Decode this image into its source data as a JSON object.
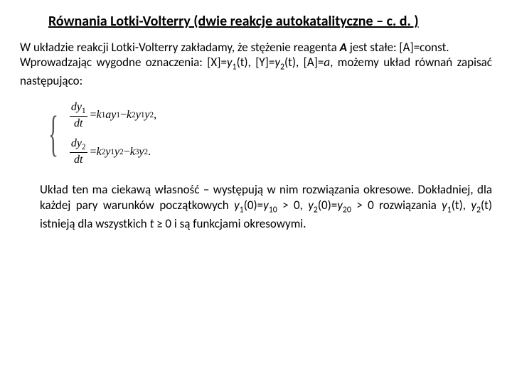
{
  "title": "Równania Lotki-Volterry (dwie reakcje autokatalityczne – c. d. )",
  "intro_p1_a": "W układzie reakcji Lotki-Volterry zakładamy, że stężenie reagenta ",
  "intro_p1_b": " jest stałe: [A]=const.",
  "reagent": "A",
  "intro_p2_a": "Wprowadzając wygodne oznaczenia: [X]=",
  "intro_p2_b": "(t), [Y]=",
  "intro_p2_c": "(t), [A]=",
  "intro_p2_d": ", możemy układ równań zapisać następująco:",
  "y1": "y",
  "y1_sub": "1",
  "y2": "y",
  "y2_sub": "2",
  "a_var": "a",
  "eq": {
    "d": "d",
    "y1": "y",
    "y1_sub": "1",
    "y2": "y",
    "y2_sub": "2",
    "t": "t",
    "eq1_rhs_a": " = ",
    "k1": "k",
    "k1_sub": "1",
    "k2": "k",
    "k2_sub": "2",
    "k3": "k",
    "k3_sub": "3",
    "a": "a",
    "minus": " − ",
    "comma": ",",
    "period": "."
  },
  "para2_a": "Układ ten ma ciekawą własność – występują w nim rozwiązania okresowe. Dokładniej, dla każdej pary warunków początkowych ",
  "para2_b": "(0)=",
  "para2_c": " > 0, ",
  "para2_d": " > 0 rozwiązania ",
  "para2_e": "(t), ",
  "para2_f": "(t) istnieją dla wszystkich ",
  "para2_g": " ≥ 0 i są funkcjami okresowymi.",
  "y10": "y",
  "y10_sub": "10",
  "y20": "y",
  "y20_sub": "20",
  "t_var": "t",
  "colors": {
    "text": "#000000",
    "background": "#ffffff"
  },
  "fontsize": {
    "title": 20,
    "body": 17,
    "eq": 16
  }
}
